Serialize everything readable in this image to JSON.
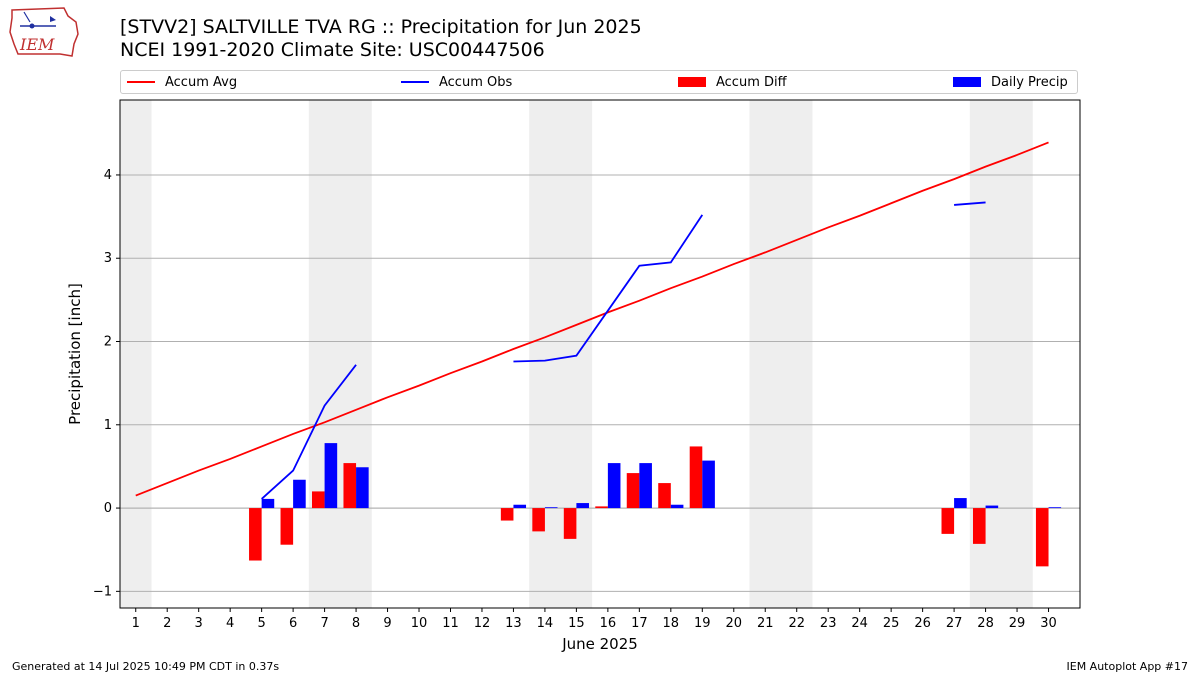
{
  "header": {
    "title_line1": "[STVV2] SALTVILLE TVA RG :: Precipitation for Jun 2025",
    "title_line2": "NCEI 1991-2020 Climate Site: USC00447506",
    "logo_text": "IEM"
  },
  "legend": {
    "placement": "top",
    "items": [
      {
        "label": "Accum Avg",
        "color": "#ff0000",
        "kind": "line"
      },
      {
        "label": "Accum Obs",
        "color": "#0000ff",
        "kind": "line"
      },
      {
        "label": "Accum Diff",
        "color": "#ff0000",
        "kind": "bar"
      },
      {
        "label": "Daily Precip",
        "color": "#0000ff",
        "kind": "bar"
      }
    ]
  },
  "footer": {
    "left": "Generated at 14 Jul 2025 10:49 PM CDT in 0.37s",
    "right": "IEM Autoplot App #17"
  },
  "chart_data": {
    "type": "bar",
    "xlabel": "June 2025",
    "ylabel": "Precipitation [inch]",
    "xlim": [
      0.5,
      31
    ],
    "ylim": [
      -1.2,
      4.9
    ],
    "yticks": [
      -1,
      0,
      1,
      2,
      3,
      4
    ],
    "xticks": [
      "1",
      "2",
      "3",
      "4",
      "5",
      "6",
      "7",
      "8",
      "9",
      "10",
      "11",
      "12",
      "13",
      "14",
      "15",
      "16",
      "17",
      "18",
      "19",
      "20",
      "21",
      "22",
      "23",
      "24",
      "25",
      "26",
      "27",
      "28",
      "29",
      "30"
    ],
    "grid": "horizontal",
    "weekend_shading": [
      [
        0.5,
        1.5
      ],
      [
        6.5,
        8.5
      ],
      [
        13.5,
        15.5
      ],
      [
        20.5,
        22.5
      ],
      [
        27.5,
        29.5
      ]
    ],
    "days": [
      1,
      2,
      3,
      4,
      5,
      6,
      7,
      8,
      9,
      10,
      11,
      12,
      13,
      14,
      15,
      16,
      17,
      18,
      19,
      20,
      21,
      22,
      23,
      24,
      25,
      26,
      27,
      28,
      29,
      30
    ],
    "accum_avg": [
      0.15,
      0.3,
      0.45,
      0.59,
      0.74,
      0.89,
      1.03,
      1.18,
      1.33,
      1.47,
      1.62,
      1.76,
      1.91,
      2.05,
      2.2,
      2.35,
      2.49,
      2.64,
      2.78,
      2.93,
      3.07,
      3.22,
      3.37,
      3.51,
      3.66,
      3.81,
      3.95,
      4.1,
      4.24,
      4.39
    ],
    "accum_obs_segments": [
      [
        [
          5,
          0.11
        ],
        [
          6,
          0.45
        ],
        [
          7,
          1.23
        ],
        [
          8,
          1.72
        ]
      ],
      [
        [
          13,
          1.76
        ],
        [
          14,
          1.77
        ],
        [
          15,
          1.83
        ],
        [
          16,
          2.37
        ],
        [
          17,
          2.91
        ],
        [
          18,
          2.95
        ],
        [
          19,
          3.52
        ]
      ],
      [
        [
          27,
          3.64
        ],
        [
          28,
          3.67
        ]
      ]
    ],
    "series": [
      {
        "name": "Accum Diff",
        "color": "#ff0000",
        "points": [
          [
            5,
            -0.63
          ],
          [
            6,
            -0.44
          ],
          [
            7,
            0.2
          ],
          [
            8,
            0.54
          ],
          [
            13,
            -0.15
          ],
          [
            14,
            -0.28
          ],
          [
            15,
            -0.37
          ],
          [
            16,
            0.02
          ],
          [
            17,
            0.42
          ],
          [
            18,
            0.3
          ],
          [
            19,
            0.74
          ],
          [
            27,
            -0.31
          ],
          [
            28,
            -0.43
          ],
          [
            30,
            -0.7
          ]
        ]
      },
      {
        "name": "Daily Precip",
        "color": "#0000ff",
        "points": [
          [
            5,
            0.11
          ],
          [
            6,
            0.34
          ],
          [
            7,
            0.78
          ],
          [
            8,
            0.49
          ],
          [
            13,
            0.04
          ],
          [
            14,
            0.01
          ],
          [
            15,
            0.06
          ],
          [
            16,
            0.54
          ],
          [
            17,
            0.54
          ],
          [
            18,
            0.04
          ],
          [
            19,
            0.57
          ],
          [
            27,
            0.12
          ],
          [
            28,
            0.03
          ],
          [
            30,
            0.01
          ]
        ]
      }
    ]
  }
}
